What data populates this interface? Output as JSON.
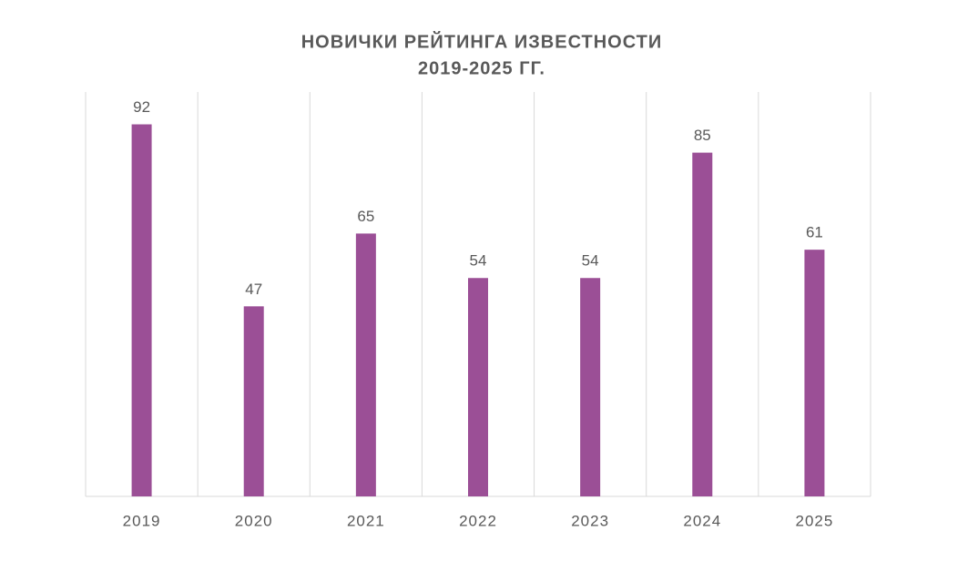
{
  "chart_data": {
    "type": "bar",
    "title": [
      "НОВИЧКИ РЕЙТИНГА ИЗВЕСТНОСТИ",
      "2019-2025 ГГ."
    ],
    "categories": [
      "2019",
      "2020",
      "2021",
      "2022",
      "2023",
      "2024",
      "2025"
    ],
    "values": [
      92,
      47,
      65,
      54,
      54,
      85,
      61
    ],
    "color": "#9b4f96",
    "ylim": [
      0,
      100
    ]
  }
}
